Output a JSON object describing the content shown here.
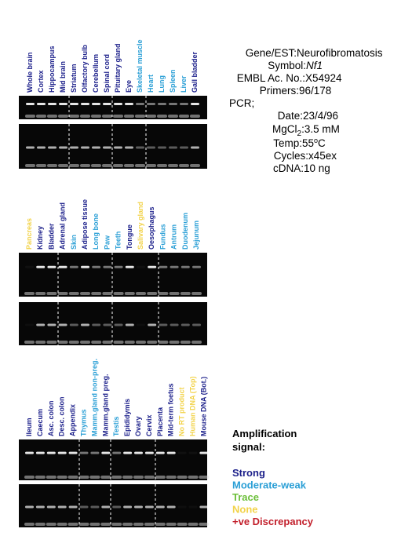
{
  "panels": [
    {
      "lanes": [
        {
          "label": "Whole brain",
          "color": "#1b1f8a"
        },
        {
          "label": "Cortex",
          "color": "#1b1f8a"
        },
        {
          "label": "Hippocampus",
          "color": "#1b1f8a"
        },
        {
          "label": "Mid brain",
          "color": "#1b1f8a"
        },
        {
          "label": "Striatum",
          "color": "#1b1f8a"
        },
        {
          "label": "Olfactory bulb",
          "color": "#1b1f8a"
        },
        {
          "label": "Cerebellum",
          "color": "#1b1f8a"
        },
        {
          "label": "Spinal cord",
          "color": "#1b1f8a"
        },
        {
          "label": "Pituitary gland",
          "color": "#1b1f8a"
        },
        {
          "label": "Eye",
          "color": "#1b1f8a"
        },
        {
          "label": "Skeletal muscle",
          "color": "#2a9fd6"
        },
        {
          "label": "Heart",
          "color": "#2a9fd6"
        },
        {
          "label": "Lung",
          "color": "#2a9fd6"
        },
        {
          "label": "Spleen",
          "color": "#2a9fd6"
        },
        {
          "label": "Liver",
          "color": "#2a9fd6"
        },
        {
          "label": "Gall bladder",
          "color": "#1b1f8a"
        }
      ]
    },
    {
      "lanes": [
        {
          "label": "Pancreas",
          "color": "#f2d34a"
        },
        {
          "label": "Kidney",
          "color": "#1b1f8a"
        },
        {
          "label": "Bladder",
          "color": "#1b1f8a"
        },
        {
          "label": "Adrenal gland",
          "color": "#1b1f8a"
        },
        {
          "label": "Skin",
          "color": "#2a9fd6"
        },
        {
          "label": "Adipose tissue",
          "color": "#1b1f8a"
        },
        {
          "label": "Long bone",
          "color": "#2a9fd6"
        },
        {
          "label": "Paw",
          "color": "#2a9fd6"
        },
        {
          "label": "Teeth",
          "color": "#2a9fd6"
        },
        {
          "label": "Tongue",
          "color": "#1b1f8a"
        },
        {
          "label": "Salivary gland",
          "color": "#f2d34a"
        },
        {
          "label": "Oesophagus",
          "color": "#1b1f8a"
        },
        {
          "label": "Fundus",
          "color": "#2a9fd6"
        },
        {
          "label": "Antrum",
          "color": "#2a9fd6"
        },
        {
          "label": "Duodenum",
          "color": "#2a9fd6"
        },
        {
          "label": "Jejunum",
          "color": "#2a9fd6"
        }
      ]
    },
    {
      "lanes": [
        {
          "label": "Ileum",
          "color": "#1b1f8a"
        },
        {
          "label": "Caecum",
          "color": "#1b1f8a"
        },
        {
          "label": "Asc. colon",
          "color": "#1b1f8a"
        },
        {
          "label": "Desc. colon",
          "color": "#1b1f8a"
        },
        {
          "label": "Appendix",
          "color": "#1b1f8a"
        },
        {
          "label": "Thymus",
          "color": "#2a9fd6"
        },
        {
          "label": "Mamm.gland non-preg.",
          "color": "#2a9fd6"
        },
        {
          "label": "Mamm.gland preg.",
          "color": "#1b1f8a"
        },
        {
          "label": "Testis",
          "color": "#2a9fd6"
        },
        {
          "label": "Epididymis",
          "color": "#1b1f8a"
        },
        {
          "label": "Ovary",
          "color": "#1b1f8a"
        },
        {
          "label": "Cervix",
          "color": "#1b1f8a"
        },
        {
          "label": "Placenta",
          "color": "#1b1f8a"
        },
        {
          "label": "Mid-term foetus",
          "color": "#1b1f8a"
        },
        {
          "label": "No RT product",
          "color": "#f2d34a"
        },
        {
          "label": "Human DNA (Top)",
          "color": "#f2d34a"
        },
        {
          "label": "Mouse DNA (Bot.)",
          "color": "#1b1f8a"
        }
      ]
    }
  ],
  "info": {
    "gene_label": "Gene/EST:",
    "gene": "Neurofibromatosis",
    "symbol_label": "Symbol:",
    "symbol": "Nf1",
    "embl_label": "EMBL Ac. No.:",
    "embl": "X54924",
    "primers_label": "Primers:",
    "primers": "96/178",
    "pcr": "PCR;",
    "date_label": "Date:",
    "date": "23/4/96",
    "mgcl_label": "MgCl",
    "mgcl_sub": "2",
    "mgcl_colon": ":",
    "mgcl": "3.5 mM",
    "temp_label": "Temp:",
    "temp": "55",
    "temp_sup": "o",
    "temp_unit": "C",
    "cycles_label": "Cycles:",
    "cycles": "x45ex",
    "cdna_label": "cDNA:",
    "cdna": "10 ng"
  },
  "legend": {
    "title_1": "Amplification",
    "title_2": "signal:",
    "items": [
      {
        "label": "Strong",
        "color": "#1b1f8a"
      },
      {
        "label": "Moderate-weak",
        "color": "#2a9fd6"
      },
      {
        "label": "Trace",
        "color": "#6cbf3a"
      },
      {
        "label": "None",
        "color": "#f2d34a"
      },
      {
        "label": "+ve Discrepancy",
        "color": "#c21f2b"
      }
    ]
  }
}
